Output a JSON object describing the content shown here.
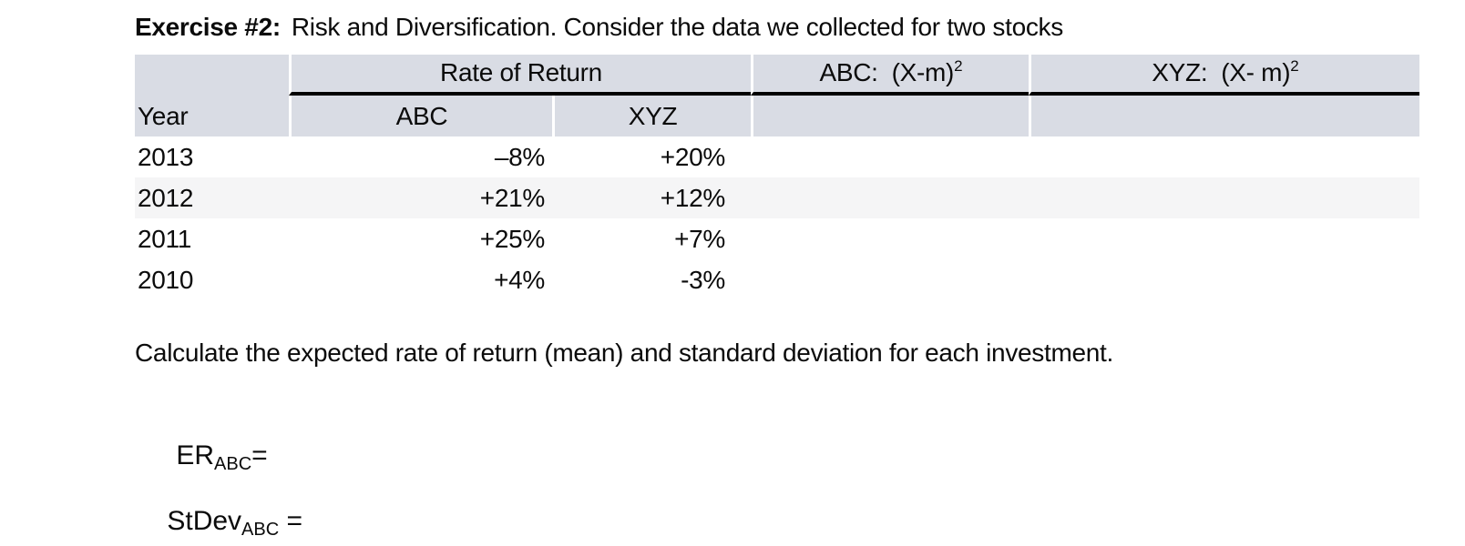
{
  "title": {
    "label": "Exercise #2:",
    "text": "Risk and Diversification. Consider the data we collected for two stocks"
  },
  "table": {
    "group_header": "Rate of Return",
    "sq_headers": {
      "abc_base": "ABC:  (X-m)",
      "abc_sup": "2",
      "xyz_base": "XYZ:  (X- m)",
      "xyz_sup": "2"
    },
    "columns": {
      "year": "Year",
      "abc": "ABC",
      "xyz": "XYZ"
    },
    "rows": [
      {
        "year": "2013",
        "abc": "–8%",
        "xyz": "+20%"
      },
      {
        "year": "2012",
        "abc": "+21%",
        "xyz": "+12%"
      },
      {
        "year": "2011",
        "abc": "+25%",
        "xyz": "+7%"
      },
      {
        "year": "2010",
        "abc": "+4%",
        "xyz": "-3%"
      }
    ]
  },
  "instruction": "Calculate the expected rate of return (mean) and standard deviation for each investment.",
  "formulas": {
    "er": {
      "base": "ER",
      "sub": "ABC",
      "eq": "="
    },
    "stdev": {
      "base": "StDev",
      "sub": "ABC",
      "eq": " ="
    }
  },
  "colors": {
    "header_bg": "#d9dce4",
    "alt_row_bg": "#f5f5f6",
    "rule": "#000000",
    "text": "#0b0b0b"
  }
}
